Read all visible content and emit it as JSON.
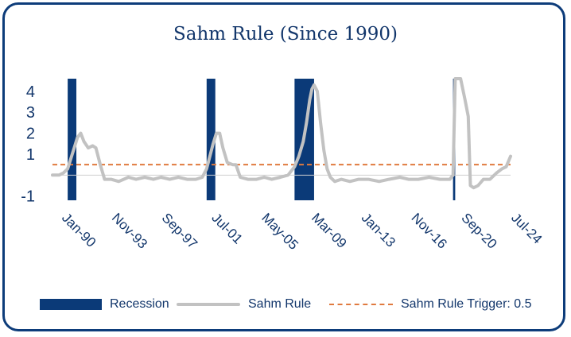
{
  "chart_data": {
    "type": "line",
    "title": "Sahm Rule (Since 1990)",
    "xlabel": "",
    "ylabel": "",
    "x_range": [
      "1989-05",
      "2024-07"
    ],
    "ylim": [
      -1.2,
      4.6
    ],
    "y_ticks": [
      -1,
      1,
      2,
      3,
      4
    ],
    "y_tick_labels": [
      "-1",
      "1",
      "2",
      "3",
      "4"
    ],
    "x_ticks": [
      "1990-01",
      "1993-11",
      "1997-09",
      "2001-07",
      "2005-05",
      "2009-03",
      "2013-01",
      "2016-11",
      "2020-09",
      "2024-07"
    ],
    "x_tick_labels": [
      "Jan-90",
      "Nov-93",
      "Sep-97",
      "Jul-01",
      "May-05",
      "Mar-09",
      "Jan-13",
      "Nov-16",
      "Sep-20",
      "Jul-24"
    ],
    "recessions": [
      {
        "start": "1990-07",
        "end": "1991-03"
      },
      {
        "start": "2001-03",
        "end": "2001-11"
      },
      {
        "start": "2007-12",
        "end": "2009-06"
      },
      {
        "start": "2020-02",
        "end": "2020-04"
      }
    ],
    "trigger": 0.5,
    "series": [
      {
        "name": "Sahm Rule",
        "points": [
          [
            "1989-05",
            0.0
          ],
          [
            "1989-11",
            0.0
          ],
          [
            "1990-03",
            0.1
          ],
          [
            "1990-07",
            0.3
          ],
          [
            "1990-10",
            0.8
          ],
          [
            "1991-01",
            1.3
          ],
          [
            "1991-04",
            1.8
          ],
          [
            "1991-07",
            2.0
          ],
          [
            "1991-10",
            1.6
          ],
          [
            "1992-02",
            1.3
          ],
          [
            "1992-06",
            1.4
          ],
          [
            "1992-09",
            1.3
          ],
          [
            "1993-01",
            0.5
          ],
          [
            "1993-05",
            -0.2
          ],
          [
            "1993-11",
            -0.2
          ],
          [
            "1994-06",
            -0.3
          ],
          [
            "1995-03",
            -0.1
          ],
          [
            "1995-10",
            -0.2
          ],
          [
            "1996-06",
            -0.1
          ],
          [
            "1997-02",
            -0.2
          ],
          [
            "1997-09",
            -0.1
          ],
          [
            "1998-05",
            -0.2
          ],
          [
            "1999-01",
            -0.1
          ],
          [
            "1999-09",
            -0.2
          ],
          [
            "2000-05",
            -0.2
          ],
          [
            "2000-11",
            -0.1
          ],
          [
            "2001-03",
            0.3
          ],
          [
            "2001-06",
            0.9
          ],
          [
            "2001-09",
            1.5
          ],
          [
            "2001-12",
            2.0
          ],
          [
            "2002-03",
            2.0
          ],
          [
            "2002-06",
            1.3
          ],
          [
            "2002-10",
            0.6
          ],
          [
            "2003-03",
            0.5
          ],
          [
            "2003-06",
            0.5
          ],
          [
            "2003-10",
            -0.1
          ],
          [
            "2004-05",
            -0.2
          ],
          [
            "2005-01",
            -0.2
          ],
          [
            "2005-08",
            -0.1
          ],
          [
            "2006-03",
            -0.2
          ],
          [
            "2006-11",
            -0.1
          ],
          [
            "2007-06",
            0.0
          ],
          [
            "2007-12",
            0.4
          ],
          [
            "2008-04",
            0.9
          ],
          [
            "2008-08",
            1.6
          ],
          [
            "2008-11",
            2.5
          ],
          [
            "2009-02",
            3.6
          ],
          [
            "2009-04",
            4.1
          ],
          [
            "2009-06",
            4.3
          ],
          [
            "2009-09",
            4.0
          ],
          [
            "2009-12",
            2.5
          ],
          [
            "2010-03",
            1.2
          ],
          [
            "2010-06",
            0.3
          ],
          [
            "2010-09",
            -0.1
          ],
          [
            "2011-01",
            -0.3
          ],
          [
            "2011-07",
            -0.2
          ],
          [
            "2012-03",
            -0.3
          ],
          [
            "2012-11",
            -0.2
          ],
          [
            "2013-08",
            -0.2
          ],
          [
            "2014-06",
            -0.3
          ],
          [
            "2015-03",
            -0.2
          ],
          [
            "2016-01",
            -0.1
          ],
          [
            "2016-09",
            -0.2
          ],
          [
            "2017-06",
            -0.2
          ],
          [
            "2018-04",
            -0.1
          ],
          [
            "2019-02",
            -0.2
          ],
          [
            "2019-11",
            -0.2
          ],
          [
            "2020-02",
            0.0
          ],
          [
            "2020-04",
            4.6
          ],
          [
            "2020-09",
            4.6
          ],
          [
            "2021-01",
            3.6
          ],
          [
            "2021-04",
            2.8
          ],
          [
            "2021-06",
            -0.5
          ],
          [
            "2021-09",
            -0.6
          ],
          [
            "2022-01",
            -0.5
          ],
          [
            "2022-06",
            -0.2
          ],
          [
            "2022-12",
            -0.2
          ],
          [
            "2023-06",
            0.1
          ],
          [
            "2023-11",
            0.3
          ],
          [
            "2024-03",
            0.4
          ],
          [
            "2024-07",
            0.9
          ]
        ]
      }
    ],
    "legend": {
      "position": "bottom",
      "items": [
        {
          "label": "Recession",
          "color": "#0b3a78"
        },
        {
          "label": "Sahm Rule",
          "color": "#c2c2c2"
        },
        {
          "label": "Sahm Rule Trigger: 0.5",
          "color": "#e07a3f"
        }
      ]
    },
    "colors": {
      "recession": "#0b3a78",
      "line": "#c2c2c2",
      "trigger": "#e07a3f",
      "text": "#12366b",
      "zero_line": "#cfcfcf"
    }
  }
}
